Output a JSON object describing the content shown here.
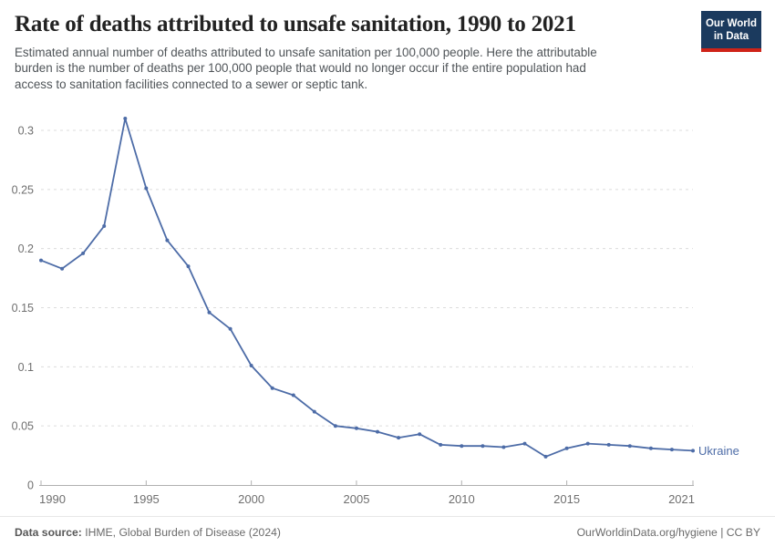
{
  "header": {
    "title": "Rate of deaths attributed to unsafe sanitation, 1990 to 2021",
    "subtitle_lines": [
      "Estimated annual number of deaths attributed to unsafe sanitation per 100,000 people. Here the attributable",
      "burden is the number of deaths per 100,000 people that would no longer occur if the entire population had",
      "access to sanitation facilities connected to a sewer or septic tank."
    ]
  },
  "logo": {
    "line1": "Our World",
    "line2": "in Data",
    "bg_color": "#1b3a5e",
    "accent_color": "#cf2318"
  },
  "chart_data": {
    "type": "line",
    "title": "Rate of deaths attributed to unsafe sanitation, 1990 to 2021",
    "xlabel": "",
    "ylabel": "",
    "series_label": "Ukraine",
    "line_color": "#4d6ca7",
    "grid": "horizontal-dashed",
    "legend_position": "end-of-line",
    "ylim": [
      0,
      0.31
    ],
    "yticks": [
      0,
      0.05,
      0.1,
      0.15,
      0.2,
      0.25,
      0.3
    ],
    "xticks": [
      1990,
      1995,
      2000,
      2005,
      2010,
      2015,
      2021
    ],
    "x": [
      1990,
      1991,
      1992,
      1993,
      1994,
      1995,
      1996,
      1997,
      1998,
      1999,
      2000,
      2001,
      2002,
      2003,
      2004,
      2005,
      2006,
      2007,
      2008,
      2009,
      2010,
      2011,
      2012,
      2013,
      2014,
      2015,
      2016,
      2017,
      2018,
      2019,
      2020,
      2021
    ],
    "series": [
      {
        "name": "Ukraine",
        "values": [
          0.19,
          0.183,
          0.196,
          0.219,
          0.31,
          0.251,
          0.207,
          0.185,
          0.146,
          0.132,
          0.101,
          0.082,
          0.076,
          0.062,
          0.05,
          0.048,
          0.045,
          0.04,
          0.043,
          0.034,
          0.033,
          0.033,
          0.032,
          0.035,
          0.024,
          0.031,
          0.035,
          0.034,
          0.033,
          0.031,
          0.03,
          0.029
        ]
      }
    ]
  },
  "footer": {
    "datasource_label": "Data source:",
    "datasource_value": " IHME, Global Burden of Disease (2024)",
    "credit": "OurWorldinData.org/hygiene | CC BY"
  }
}
